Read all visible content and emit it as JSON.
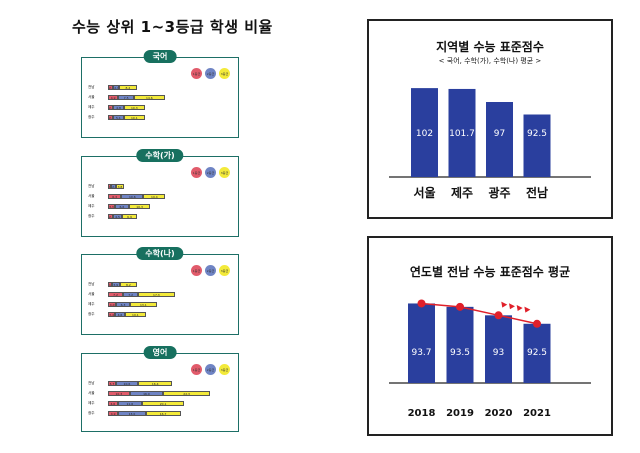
{
  "main_title": "수능 상위 1~3등급 학생 비율",
  "legend": [
    "1등급",
    "2등급",
    "3등급"
  ],
  "colors": {
    "grade1": "#e15b6b",
    "grade2": "#6f84c4",
    "grade3": "#f3ea3a",
    "bar": "#2a3f9e",
    "trend": "#e0202a",
    "tag": "#17705f"
  },
  "subjects": [
    {
      "name": "국어",
      "rows": [
        {
          "region": "전남",
          "v": [
            2.5,
            2.9,
            8.2
          ],
          "labels": [
            "2.5",
            "2.9",
            "8.2"
          ]
        },
        {
          "region": "서울",
          "v": [
            4.9,
            7.5,
            14.6
          ],
          "labels": [
            "4.9",
            "7.5",
            "14.6"
          ]
        },
        {
          "region": "제주",
          "v": [
            2.6,
            4.8,
            10.3
          ],
          "labels": [
            "2.6",
            "4.8",
            "10.3"
          ]
        },
        {
          "region": "광주",
          "v": [
            2.4,
            5.1,
            10.1
          ],
          "labels": [
            "2.4",
            "5.1",
            "10.1"
          ]
        }
      ]
    },
    {
      "name": "수학(가)",
      "rows": [
        {
          "region": "전남",
          "v": [
            1.5,
            2.3,
            3.8
          ],
          "labels": [
            "1.5",
            "2.3",
            "3.8"
          ]
        },
        {
          "region": "서울",
          "v": [
            6.3,
            10.6,
            10.4
          ],
          "labels": [
            "6.3",
            "10.6",
            "10.4"
          ]
        },
        {
          "region": "제주",
          "v": [
            3.3,
            6.6,
            10.3
          ],
          "labels": [
            "3.3",
            "6.6",
            "10.3"
          ]
        },
        {
          "region": "광주",
          "v": [
            2.3,
            4.5,
            6.9
          ],
          "labels": [
            "2.3",
            "4.5",
            "6.9"
          ]
        }
      ]
    },
    {
      "name": "수학(나)",
      "rows": [
        {
          "region": "전남",
          "v": [
            1.7,
            3.9,
            8.2
          ],
          "labels": [
            "1.7",
            "3.9",
            "8.2"
          ]
        },
        {
          "region": "서울",
          "v": [
            7.2,
            7.2,
            17.3
          ],
          "labels": [
            "7.2",
            "7.2",
            "17.3"
          ]
        },
        {
          "region": "제주",
          "v": [
            4.0,
            6.3,
            13.1
          ],
          "labels": [
            "4.0",
            "6.3",
            "13.1"
          ]
        },
        {
          "region": "광주",
          "v": [
            3.4,
            4.6,
            10.1
          ],
          "labels": [
            "3.4",
            "4.6",
            "10.1"
          ]
        }
      ]
    },
    {
      "name": "영어",
      "rows": [
        {
          "region": "전남",
          "v": [
            3.7,
            10.6,
            16.4
          ],
          "labels": [
            "3.7",
            "10.6",
            "16.4"
          ]
        },
        {
          "region": "서울",
          "v": [
            10.3,
            16.0,
            22.3
          ],
          "labels": [
            "10.3",
            "16.0",
            "22.3"
          ]
        },
        {
          "region": "제주",
          "v": [
            4.6,
            11.6,
            20.1
          ],
          "labels": [
            "4.6",
            "11.6",
            "20.1"
          ]
        },
        {
          "region": "광주",
          "v": [
            4.9,
            13.0,
            16.7
          ],
          "labels": [
            "4.9",
            "13.0",
            "16.7"
          ]
        }
      ]
    }
  ],
  "chart_data": [
    {
      "type": "bar",
      "title": "지역별 수능 표준점수",
      "subtitle": "< 국어, 수학(가), 수학(나) 평균 >",
      "categories": [
        "서울",
        "제주",
        "광주",
        "전남"
      ],
      "values": [
        102,
        101.7,
        97,
        92.5
      ],
      "value_labels": [
        "102",
        "101.7",
        "97",
        "92.5"
      ],
      "ylim": [
        70,
        106
      ]
    },
    {
      "type": "bar",
      "title": "연도별 전남 수능 표준점수 평균",
      "categories": [
        "2018",
        "2019",
        "2020",
        "2021"
      ],
      "values": [
        93.7,
        93.5,
        93,
        92.5
      ],
      "value_labels": [
        "93.7",
        "93.5",
        "93",
        "92.5"
      ],
      "ylim": [
        89,
        94.2
      ],
      "trend_line": true
    }
  ]
}
